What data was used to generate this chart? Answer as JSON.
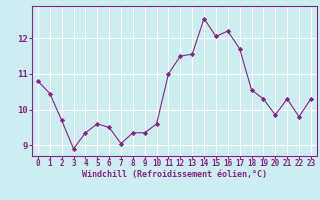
{
  "x": [
    0,
    1,
    2,
    3,
    4,
    5,
    6,
    7,
    8,
    9,
    10,
    11,
    12,
    13,
    14,
    15,
    16,
    17,
    18,
    19,
    20,
    21,
    22,
    23
  ],
  "y": [
    10.8,
    10.45,
    9.7,
    8.9,
    9.35,
    9.6,
    9.5,
    9.05,
    9.35,
    9.35,
    9.6,
    11.0,
    11.5,
    11.55,
    12.55,
    12.05,
    12.2,
    11.7,
    10.55,
    10.3,
    9.85,
    10.3,
    9.8,
    10.3
  ],
  "line_color": "#882288",
  "marker": "D",
  "marker_size": 2.2,
  "bg_color": "#cceef0",
  "grid_color": "#ffffff",
  "xlabel": "Windchill (Refroidissement éolien,°C)",
  "xlim": [
    -0.5,
    23.5
  ],
  "ylim": [
    8.7,
    12.9
  ],
  "yticks": [
    9,
    10,
    11,
    12
  ],
  "xticks": [
    0,
    1,
    2,
    3,
    4,
    5,
    6,
    7,
    8,
    9,
    10,
    11,
    12,
    13,
    14,
    15,
    16,
    17,
    18,
    19,
    20,
    21,
    22,
    23
  ],
  "tick_color": "#882288",
  "tick_labelsize": 5.5,
  "xlabel_fontsize": 6.0,
  "spine_color": "#882288",
  "linewidth": 0.8
}
